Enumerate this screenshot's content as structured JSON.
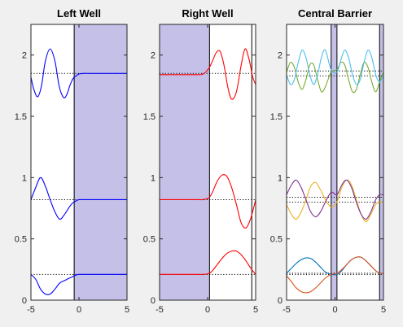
{
  "colors": {
    "figure_background": "#f0f0f0",
    "axes_background": "#ffffff",
    "barrier_fill": "#c5c0e8",
    "energy_line": "#000000"
  },
  "chart_data": [
    {
      "type": "line",
      "title": "Left Well",
      "xlim": [
        -5,
        5
      ],
      "ylim": [
        0,
        2.25
      ],
      "xticks": [
        "-5",
        "0",
        "5"
      ],
      "yticks": [
        "0",
        "0.5",
        "1",
        "1.5",
        "2"
      ],
      "shaded_regions": [
        [
          -0.5,
          5
        ]
      ],
      "wall_lines": [
        -5,
        -0.5
      ],
      "energy_levels": [
        0.21,
        0.82,
        1.85
      ],
      "grid": false,
      "legend": "none",
      "series": [
        {
          "color": "#0000ff",
          "x": [
            -5.0,
            -4.5,
            -4.0,
            -3.5,
            -3.0,
            -2.5,
            -2.0,
            -1.5,
            -1.0,
            -0.7,
            -0.5,
            -0.3,
            0.0,
            0.5,
            1.0,
            1.5,
            5.0
          ],
          "y": [
            0.21,
            0.17,
            0.09,
            0.05,
            0.05,
            0.09,
            0.14,
            0.16,
            0.18,
            0.19,
            0.2,
            0.205,
            0.21,
            0.21,
            0.21,
            0.21,
            0.21
          ]
        },
        {
          "color": "#0000ff",
          "x": [
            -5.0,
            -4.5,
            -4.0,
            -3.5,
            -3.0,
            -2.5,
            -2.0,
            -1.5,
            -1.0,
            -0.7,
            -0.5,
            -0.3,
            0.0,
            0.5,
            1.0,
            1.5,
            5.0
          ],
          "y": [
            0.82,
            0.92,
            1.0,
            0.93,
            0.82,
            0.72,
            0.66,
            0.7,
            0.76,
            0.79,
            0.8,
            0.81,
            0.82,
            0.82,
            0.82,
            0.82,
            0.82
          ]
        },
        {
          "color": "#0000ff",
          "x": [
            -5.0,
            -4.7,
            -4.3,
            -3.9,
            -3.5,
            -3.0,
            -2.5,
            -2.1,
            -1.8,
            -1.5,
            -1.2,
            -1.0,
            -0.8,
            -0.6,
            -0.5,
            -0.3,
            0.0,
            0.5,
            1.0,
            1.5,
            5.0
          ],
          "y": [
            1.82,
            1.72,
            1.66,
            1.75,
            1.95,
            2.05,
            1.95,
            1.76,
            1.68,
            1.65,
            1.69,
            1.74,
            1.78,
            1.81,
            1.82,
            1.83,
            1.845,
            1.85,
            1.85,
            1.85,
            1.85
          ]
        }
      ]
    },
    {
      "type": "line",
      "title": "Right Well",
      "xlim": [
        -5,
        5
      ],
      "ylim": [
        0,
        2.25
      ],
      "xticks": [
        "-5",
        "0",
        "5"
      ],
      "yticks": [
        "0",
        "0.5",
        "1",
        "1.5",
        "2"
      ],
      "shaded_regions": [
        [
          -5,
          0.2
        ]
      ],
      "wall_lines": [
        0.2,
        4.6
      ],
      "energy_levels": [
        0.21,
        0.82,
        1.85
      ],
      "grid": false,
      "legend": "none",
      "series": [
        {
          "color": "#ff0000",
          "x": [
            -5.0,
            -1.0,
            -0.5,
            0.0,
            0.2,
            0.5,
            1.0,
            1.5,
            2.0,
            2.5,
            3.0,
            3.5,
            4.0,
            4.5,
            5.0
          ],
          "y": [
            0.21,
            0.21,
            0.21,
            0.215,
            0.22,
            0.24,
            0.29,
            0.34,
            0.38,
            0.4,
            0.4,
            0.37,
            0.32,
            0.26,
            0.21
          ]
        },
        {
          "color": "#ff0000",
          "x": [
            -5.0,
            -1.0,
            -0.5,
            0.0,
            0.2,
            0.5,
            1.0,
            1.5,
            2.0,
            2.5,
            3.0,
            3.5,
            4.0,
            4.5,
            5.0
          ],
          "y": [
            0.82,
            0.82,
            0.82,
            0.83,
            0.84,
            0.88,
            0.97,
            1.02,
            1.01,
            0.92,
            0.78,
            0.63,
            0.59,
            0.67,
            0.82
          ]
        },
        {
          "color": "#ff0000",
          "x": [
            -5.0,
            -1.0,
            -0.5,
            -0.2,
            0.0,
            0.2,
            0.5,
            0.9,
            1.3,
            1.7,
            2.1,
            2.5,
            3.0,
            3.5,
            3.9,
            4.3,
            4.7,
            5.0
          ],
          "y": [
            1.84,
            1.84,
            1.845,
            1.86,
            1.88,
            1.9,
            1.95,
            2.02,
            2.03,
            1.92,
            1.74,
            1.64,
            1.7,
            1.92,
            2.05,
            1.97,
            1.82,
            1.76
          ]
        }
      ]
    },
    {
      "type": "line",
      "title": "Central Barrier",
      "xlim": [
        -5,
        5
      ],
      "ylim": [
        0,
        2.25
      ],
      "xticks": [
        "-5",
        "0",
        "5"
      ],
      "yticks": [
        "0",
        "0.5",
        "1",
        "1.5",
        "2"
      ],
      "shaded_regions": [
        [
          -0.4,
          0.2
        ],
        [
          4.6,
          5
        ]
      ],
      "wall_lines": [
        -0.4,
        0.2,
        4.6
      ],
      "energy_levels": [
        0.21,
        0.22,
        0.8,
        0.84,
        1.83,
        1.87
      ],
      "grid": false,
      "legend": "none",
      "series": [
        {
          "color": "#0072bd",
          "x": [
            -5.0,
            -4.5,
            -4.0,
            -3.5,
            -3.0,
            -2.5,
            -2.0,
            -1.5,
            -1.0,
            -0.4,
            0.2,
            0.7,
            1.2,
            1.7,
            2.2,
            2.7,
            3.2,
            3.7,
            4.2,
            4.6,
            5.0
          ],
          "y": [
            0.22,
            0.26,
            0.3,
            0.33,
            0.345,
            0.34,
            0.31,
            0.27,
            0.23,
            0.21,
            0.21,
            0.24,
            0.29,
            0.33,
            0.35,
            0.35,
            0.32,
            0.28,
            0.24,
            0.22,
            0.22
          ]
        },
        {
          "color": "#d95319",
          "x": [
            -5.0,
            -4.5,
            -4.0,
            -3.5,
            -3.0,
            -2.5,
            -2.0,
            -1.5,
            -1.0,
            -0.4,
            0.2,
            0.7,
            1.2,
            1.7,
            2.2,
            2.7,
            3.2,
            3.7,
            4.2,
            4.6,
            5.0
          ],
          "y": [
            0.2,
            0.15,
            0.1,
            0.07,
            0.06,
            0.07,
            0.1,
            0.14,
            0.18,
            0.21,
            0.22,
            0.25,
            0.29,
            0.33,
            0.35,
            0.35,
            0.32,
            0.28,
            0.24,
            0.22,
            0.22
          ]
        },
        {
          "color": "#edb120",
          "x": [
            -5.0,
            -4.5,
            -4.0,
            -3.5,
            -3.0,
            -2.5,
            -2.0,
            -1.5,
            -1.0,
            -0.4,
            0.2,
            0.7,
            1.2,
            1.7,
            2.2,
            2.7,
            3.2,
            3.7,
            4.2,
            4.6,
            5.0
          ],
          "y": [
            0.78,
            0.7,
            0.66,
            0.72,
            0.82,
            0.93,
            0.96,
            0.9,
            0.82,
            0.76,
            0.8,
            0.92,
            0.98,
            0.94,
            0.82,
            0.7,
            0.64,
            0.7,
            0.78,
            0.8,
            0.8
          ]
        },
        {
          "color": "#7e2f8e",
          "x": [
            -5.0,
            -4.5,
            -4.0,
            -3.5,
            -3.0,
            -2.5,
            -2.0,
            -1.5,
            -1.0,
            -0.4,
            0.2,
            0.7,
            1.2,
            1.7,
            2.2,
            2.7,
            3.2,
            3.7,
            4.2,
            4.6,
            5.0
          ],
          "y": [
            0.86,
            0.94,
            0.98,
            0.92,
            0.82,
            0.72,
            0.68,
            0.72,
            0.8,
            0.88,
            0.86,
            0.94,
            0.98,
            0.92,
            0.8,
            0.7,
            0.66,
            0.72,
            0.82,
            0.86,
            0.86
          ]
        },
        {
          "color": "#77ac30",
          "x": [
            -5.0,
            -4.6,
            -4.2,
            -3.8,
            -3.4,
            -3.0,
            -2.6,
            -2.2,
            -1.8,
            -1.4,
            -1.0,
            -0.4,
            0.2,
            0.6,
            1.0,
            1.4,
            1.8,
            2.2,
            2.6,
            3.0,
            3.4,
            3.8,
            4.2,
            4.6,
            5.0
          ],
          "y": [
            1.86,
            1.94,
            1.9,
            1.78,
            1.72,
            1.8,
            1.92,
            1.92,
            1.8,
            1.7,
            1.74,
            1.86,
            1.88,
            1.94,
            1.92,
            1.8,
            1.7,
            1.72,
            1.84,
            1.94,
            1.9,
            1.78,
            1.7,
            1.78,
            1.86
          ]
        },
        {
          "color": "#4dbeee",
          "x": [
            -5.0,
            -4.6,
            -4.2,
            -3.8,
            -3.4,
            -3.0,
            -2.6,
            -2.2,
            -1.8,
            -1.4,
            -1.0,
            -0.4,
            0.2,
            0.6,
            1.0,
            1.4,
            1.8,
            2.2,
            2.6,
            3.0,
            3.4,
            3.8,
            4.2,
            4.6,
            5.0
          ],
          "y": [
            1.84,
            1.76,
            1.8,
            1.94,
            2.04,
            1.98,
            1.84,
            1.76,
            1.84,
            1.98,
            2.04,
            1.88,
            1.86,
            1.96,
            2.04,
            1.98,
            1.84,
            1.76,
            1.8,
            1.94,
            2.04,
            1.98,
            1.84,
            1.78,
            1.84
          ]
        }
      ]
    }
  ]
}
